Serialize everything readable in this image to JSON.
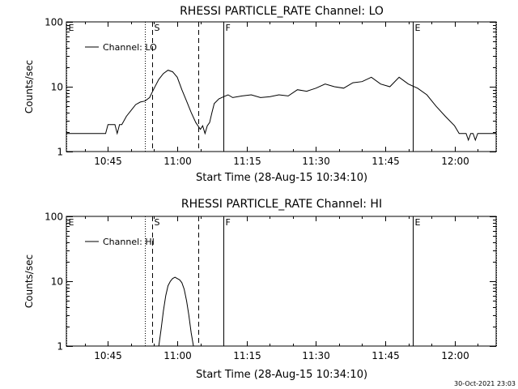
{
  "footer": {
    "timestamp": "30-Oct-2021 23:03"
  },
  "chart_data": [
    {
      "type": "line",
      "title": "RHESSI PARTICLE_RATE Channel: LO",
      "xlabel": "Start Time (28-Aug-15 10:34:10)",
      "ylabel": "Counts/sec",
      "yscale": "log",
      "ylim": [
        1,
        100
      ],
      "xlim_minutes": [
        36,
        129
      ],
      "x_ticks": [
        "10:45",
        "11:00",
        "11:15",
        "11:30",
        "11:45",
        "12:00"
      ],
      "y_ticks": [
        "1",
        "10",
        "100"
      ],
      "legend": {
        "placement": "top-left",
        "label": "Channel: LO"
      },
      "markers": [
        {
          "label": "E",
          "time": "10:36",
          "style": "dotted"
        },
        {
          "label": "",
          "time": "10:53",
          "style": "dotted"
        },
        {
          "label": "S",
          "time": "10:54:30",
          "style": "dashed"
        },
        {
          "label": "",
          "time": "11:04:30",
          "style": "dashed"
        },
        {
          "label": "F",
          "time": "11:10",
          "style": "solid"
        },
        {
          "label": "E",
          "time": "11:51",
          "style": "solid"
        },
        {
          "label": "",
          "time": "12:09",
          "style": "dotted"
        }
      ],
      "series": [
        {
          "name": "Channel: LO",
          "x_minutes": [
            36,
            36.5,
            37,
            44,
            44.5,
            45,
            46.5,
            47,
            47.5,
            48,
            49,
            50,
            51,
            52,
            53,
            54,
            55,
            56,
            57,
            58,
            59,
            60,
            61,
            62,
            63,
            64,
            65,
            65.5,
            66,
            66.5,
            67,
            67.5,
            68,
            69,
            70,
            71,
            72,
            74,
            76,
            78,
            80,
            82,
            84,
            86,
            88,
            90,
            92,
            94,
            96,
            98,
            100,
            102,
            104,
            106,
            108,
            110,
            112,
            114,
            116,
            118,
            120,
            121,
            122,
            122.5,
            123,
            123.5,
            124,
            124.5,
            125,
            125.5,
            126,
            127,
            128,
            129
          ],
          "y": [
            1.9,
            1.9,
            1.9,
            1.9,
            1.9,
            2.6,
            2.6,
            1.9,
            2.6,
            2.6,
            3.5,
            4.3,
            5.3,
            5.8,
            6.0,
            6.8,
            9.5,
            13.0,
            16.0,
            18.0,
            17.0,
            14.0,
            9.0,
            6.0,
            4.0,
            2.8,
            2.2,
            2.5,
            1.9,
            2.5,
            2.8,
            4.0,
            5.5,
            6.5,
            7.0,
            7.5,
            6.8,
            7.2,
            7.5,
            6.8,
            7.0,
            7.5,
            7.2,
            9.0,
            8.5,
            9.5,
            11.0,
            10.0,
            9.5,
            11.5,
            12.0,
            14.0,
            11.0,
            10.0,
            14.0,
            11.0,
            9.5,
            7.5,
            5.0,
            3.5,
            2.5,
            1.9,
            1.9,
            1.9,
            1.5,
            1.9,
            1.9,
            1.5,
            1.9,
            1.9,
            1.9,
            1.9,
            1.9,
            1.9
          ]
        }
      ]
    },
    {
      "type": "line",
      "title": "RHESSI PARTICLE_RATE Channel: HI",
      "xlabel": "Start Time (28-Aug-15 10:34:10)",
      "ylabel": "Counts/sec",
      "yscale": "log",
      "ylim": [
        1,
        100
      ],
      "xlim_minutes": [
        36,
        129
      ],
      "x_ticks": [
        "10:45",
        "11:00",
        "11:15",
        "11:30",
        "11:45",
        "12:00"
      ],
      "y_ticks": [
        "1",
        "10",
        "100"
      ],
      "legend": {
        "placement": "top-left",
        "label": "Channel: HI"
      },
      "markers": [
        {
          "label": "E",
          "time": "10:36",
          "style": "dotted"
        },
        {
          "label": "",
          "time": "10:53",
          "style": "dotted"
        },
        {
          "label": "S",
          "time": "10:54:30",
          "style": "dashed"
        },
        {
          "label": "",
          "time": "11:04:30",
          "style": "dashed"
        },
        {
          "label": "F",
          "time": "11:10",
          "style": "solid"
        },
        {
          "label": "E",
          "time": "11:51",
          "style": "solid"
        },
        {
          "label": "",
          "time": "12:09",
          "style": "dotted"
        }
      ],
      "series": [
        {
          "name": "Channel: HI",
          "x_minutes": [
            56,
            56.5,
            57,
            57.5,
            58,
            58.5,
            59,
            59.5,
            60,
            60.5,
            61,
            61.5,
            62,
            62.5,
            63,
            63.5
          ],
          "y": [
            1.0,
            1.8,
            3.5,
            6.0,
            8.5,
            10.0,
            11.0,
            11.5,
            11.0,
            10.5,
            9.5,
            7.5,
            5.0,
            3.0,
            1.6,
            1.0
          ]
        }
      ]
    }
  ]
}
